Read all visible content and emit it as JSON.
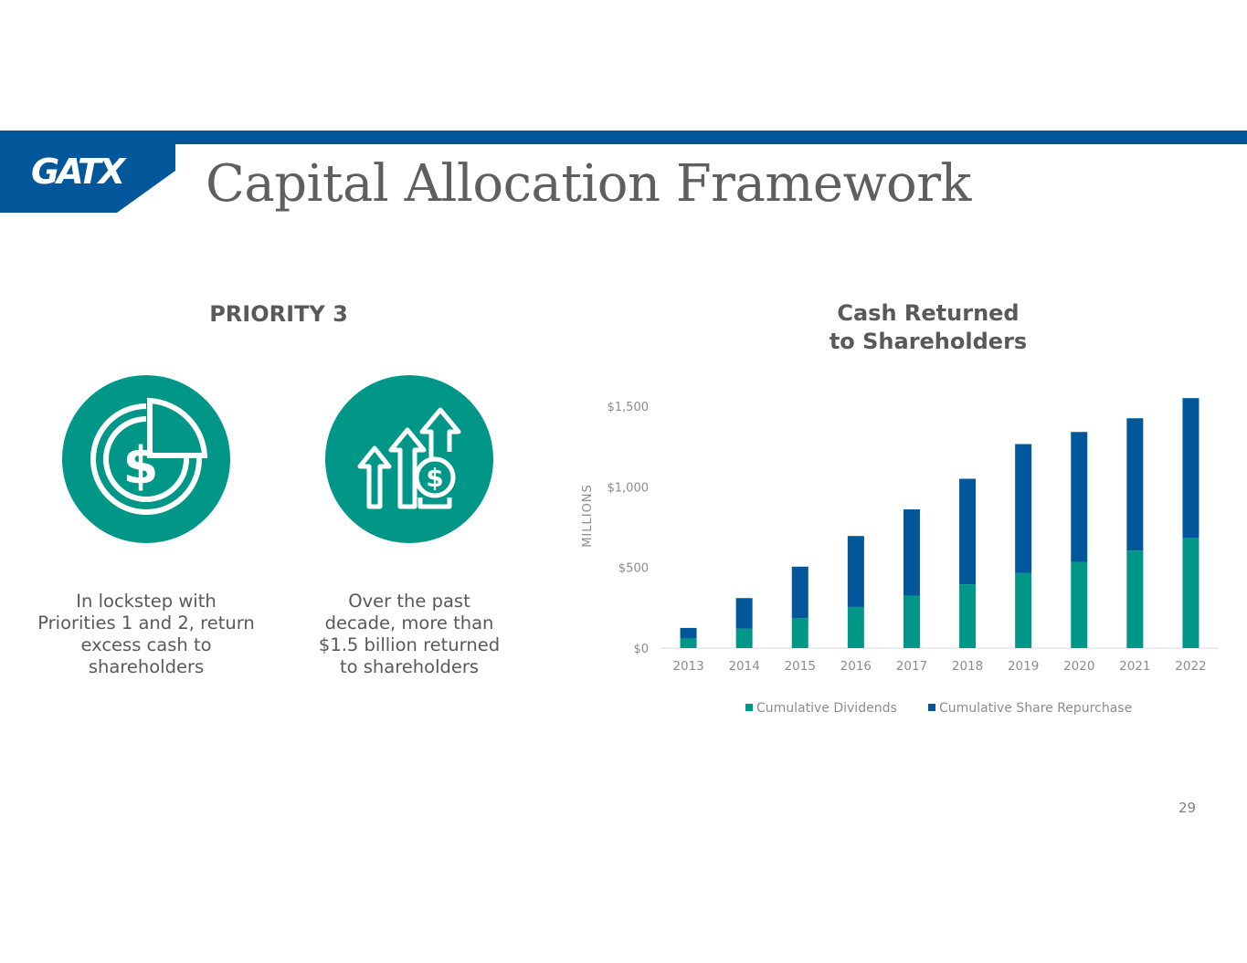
{
  "header": {
    "logo": "GATX",
    "title": "Capital Allocation Framework"
  },
  "left": {
    "priority_label": "PRIORITY 3",
    "items": [
      {
        "icon": "dollar-coin-icon",
        "text": "In lockstep with Priorities 1 and 2, return excess cash to shareholders"
      },
      {
        "icon": "growth-arrows-dollar-icon",
        "text": "Over the past decade, more than $1.5 billion returned to shareholders"
      }
    ]
  },
  "colors": {
    "brand_blue": "#02569a",
    "teal": "#009688",
    "gray_text": "#595959"
  },
  "page_number": "29",
  "chart_data": {
    "type": "bar",
    "stacked": true,
    "title": "Cash Returned\nto Shareholders",
    "ylabel": "MILLIONS",
    "xlabel": "",
    "categories": [
      "2013",
      "2014",
      "2015",
      "2016",
      "2017",
      "2018",
      "2019",
      "2020",
      "2021",
      "2022"
    ],
    "series": [
      {
        "name": "Cumulative Dividends",
        "color": "#009688",
        "values": [
          60,
          120,
          185,
          255,
          325,
          395,
          465,
          535,
          605,
          685
        ]
      },
      {
        "name": "Cumulative Share Repurchase",
        "color": "#02569a",
        "values": [
          65,
          190,
          320,
          440,
          535,
          655,
          800,
          805,
          820,
          865
        ]
      }
    ],
    "ylim": [
      0,
      1500
    ],
    "yticks": [
      0,
      500,
      1000,
      1500
    ],
    "ytick_labels": [
      "$0",
      "$500",
      "$1,000",
      "$1,500"
    ],
    "grid": false,
    "legend": "bottom"
  }
}
